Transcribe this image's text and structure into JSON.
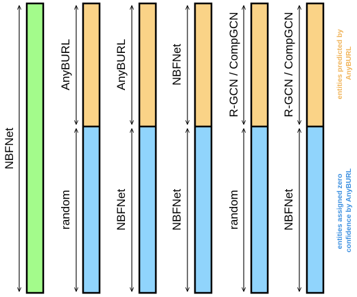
{
  "colors": {
    "green": "#a3fb8b",
    "orange": "#fad387",
    "blue": "#90d4fc",
    "orange_text": "#f0b45a",
    "blue_text": "#3b8fe0"
  },
  "columns": [
    {
      "type": "full",
      "label": "NBFNet"
    },
    {
      "type": "split",
      "top_label": "AnyBURL",
      "bottom_label": "random"
    },
    {
      "type": "split",
      "top_label": "AnyBURL",
      "bottom_label": "NBFNet"
    },
    {
      "type": "split",
      "top_label": "NBFNet",
      "bottom_label": "NBFNet"
    },
    {
      "type": "split",
      "top_label": "R-GCN / CompGCN",
      "bottom_label": "random"
    },
    {
      "type": "split",
      "top_label": "R-GCN / CompGCN",
      "bottom_label": "NBFNet"
    }
  ],
  "legend": {
    "top": {
      "line1": "entities predicted by",
      "line2": "AnyBURL"
    },
    "bottom": {
      "line1": "entities assigned zero",
      "line2": "confidence by AnyBURL"
    }
  }
}
